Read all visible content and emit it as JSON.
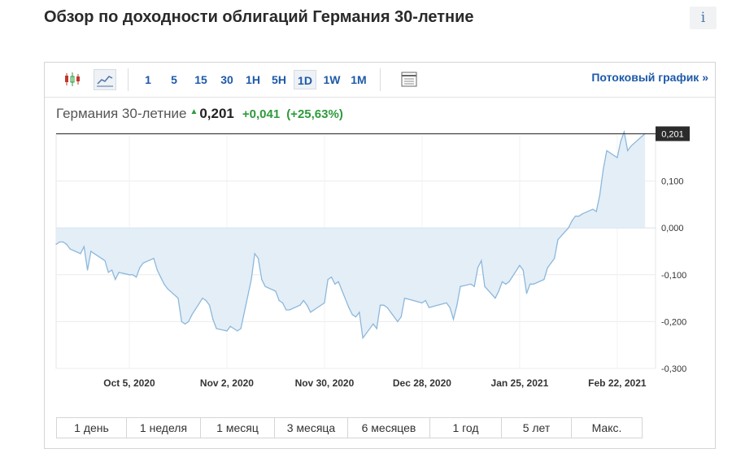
{
  "page": {
    "title": "Обзор по доходности облигаций Германия 30-летние",
    "info_label": "i"
  },
  "toolbar": {
    "intervals": [
      "1",
      "5",
      "15",
      "30",
      "1H",
      "5H",
      "1D",
      "1W",
      "1M"
    ],
    "active_interval": "1D",
    "stream_link": "Потоковый график »",
    "icons": [
      "candlestick-icon",
      "line-chart-icon",
      "table-icon"
    ]
  },
  "quote": {
    "name": "Германия 30-летние",
    "last": "0,201",
    "change": "+0,041",
    "change_pct": "(+25,63%)",
    "direction": "up",
    "up_color": "#2e9a3d"
  },
  "chart_data": {
    "type": "area",
    "title": "",
    "xlabel": "",
    "ylabel": "",
    "ylim": [
      -0.3,
      0.2
    ],
    "yticks": [
      "0,100",
      "0,000",
      "-0,100",
      "-0,200",
      "-0,300"
    ],
    "ytick_values": [
      0.1,
      0.0,
      -0.1,
      -0.2,
      -0.3
    ],
    "xticks": [
      {
        "date": "2020-10-05",
        "label": "Oct 5, 2020"
      },
      {
        "date": "2020-11-02",
        "label": "Nov 2, 2020"
      },
      {
        "date": "2020-11-30",
        "label": "Nov 30, 2020"
      },
      {
        "date": "2020-12-28",
        "label": "Dec 28, 2020"
      },
      {
        "date": "2021-01-25",
        "label": "Jan 25, 2021"
      },
      {
        "date": "2021-02-22",
        "label": "Feb 22, 2021"
      }
    ],
    "x_start": "2020-09-14",
    "x_end": "2021-03-05",
    "last_value": 0.201,
    "last_label": "0,201",
    "baseline": 0.0,
    "line_color": "#8cb8dc",
    "fill_color": "#e4eef7",
    "series": [
      {
        "values": [
          [
            "2020-09-14",
            -0.035
          ],
          [
            "2020-09-15",
            -0.03
          ],
          [
            "2020-09-16",
            -0.03
          ],
          [
            "2020-09-17",
            -0.035
          ],
          [
            "2020-09-18",
            -0.045
          ],
          [
            "2020-09-21",
            -0.055
          ],
          [
            "2020-09-22",
            -0.04
          ],
          [
            "2020-09-23",
            -0.09
          ],
          [
            "2020-09-24",
            -0.05
          ],
          [
            "2020-09-25",
            -0.055
          ],
          [
            "2020-09-28",
            -0.07
          ],
          [
            "2020-09-29",
            -0.095
          ],
          [
            "2020-09-30",
            -0.09
          ],
          [
            "2020-10-01",
            -0.11
          ],
          [
            "2020-10-02",
            -0.095
          ],
          [
            "2020-10-05",
            -0.1
          ],
          [
            "2020-10-06",
            -0.1
          ],
          [
            "2020-10-07",
            -0.105
          ],
          [
            "2020-10-08",
            -0.085
          ],
          [
            "2020-10-09",
            -0.075
          ],
          [
            "2020-10-12",
            -0.065
          ],
          [
            "2020-10-13",
            -0.09
          ],
          [
            "2020-10-14",
            -0.105
          ],
          [
            "2020-10-15",
            -0.12
          ],
          [
            "2020-10-16",
            -0.13
          ],
          [
            "2020-10-19",
            -0.15
          ],
          [
            "2020-10-20",
            -0.2
          ],
          [
            "2020-10-21",
            -0.205
          ],
          [
            "2020-10-22",
            -0.2
          ],
          [
            "2020-10-23",
            -0.185
          ],
          [
            "2020-10-26",
            -0.15
          ],
          [
            "2020-10-27",
            -0.155
          ],
          [
            "2020-10-28",
            -0.165
          ],
          [
            "2020-10-29",
            -0.195
          ],
          [
            "2020-10-30",
            -0.215
          ],
          [
            "2020-11-02",
            -0.22
          ],
          [
            "2020-11-03",
            -0.21
          ],
          [
            "2020-11-04",
            -0.215
          ],
          [
            "2020-11-05",
            -0.22
          ],
          [
            "2020-11-06",
            -0.215
          ],
          [
            "2020-11-09",
            -0.11
          ],
          [
            "2020-11-10",
            -0.055
          ],
          [
            "2020-11-11",
            -0.065
          ],
          [
            "2020-11-12",
            -0.11
          ],
          [
            "2020-11-13",
            -0.125
          ],
          [
            "2020-11-16",
            -0.135
          ],
          [
            "2020-11-17",
            -0.155
          ],
          [
            "2020-11-18",
            -0.16
          ],
          [
            "2020-11-19",
            -0.175
          ],
          [
            "2020-11-20",
            -0.175
          ],
          [
            "2020-11-23",
            -0.165
          ],
          [
            "2020-11-24",
            -0.155
          ],
          [
            "2020-11-25",
            -0.165
          ],
          [
            "2020-11-26",
            -0.18
          ],
          [
            "2020-11-27",
            -0.175
          ],
          [
            "2020-11-30",
            -0.16
          ],
          [
            "2020-12-01",
            -0.11
          ],
          [
            "2020-12-02",
            -0.105
          ],
          [
            "2020-12-03",
            -0.12
          ],
          [
            "2020-12-04",
            -0.115
          ],
          [
            "2020-12-07",
            -0.17
          ],
          [
            "2020-12-08",
            -0.185
          ],
          [
            "2020-12-09",
            -0.19
          ],
          [
            "2020-12-10",
            -0.18
          ],
          [
            "2020-12-11",
            -0.235
          ],
          [
            "2020-12-14",
            -0.205
          ],
          [
            "2020-12-15",
            -0.215
          ],
          [
            "2020-12-16",
            -0.165
          ],
          [
            "2020-12-17",
            -0.165
          ],
          [
            "2020-12-18",
            -0.17
          ],
          [
            "2020-12-21",
            -0.2
          ],
          [
            "2020-12-22",
            -0.19
          ],
          [
            "2020-12-23",
            -0.15
          ],
          [
            "2020-12-28",
            -0.16
          ],
          [
            "2020-12-29",
            -0.155
          ],
          [
            "2020-12-30",
            -0.17
          ],
          [
            "2021-01-04",
            -0.16
          ],
          [
            "2021-01-05",
            -0.17
          ],
          [
            "2021-01-06",
            -0.195
          ],
          [
            "2021-01-07",
            -0.165
          ],
          [
            "2021-01-08",
            -0.125
          ],
          [
            "2021-01-11",
            -0.12
          ],
          [
            "2021-01-12",
            -0.125
          ],
          [
            "2021-01-13",
            -0.085
          ],
          [
            "2021-01-14",
            -0.07
          ],
          [
            "2021-01-15",
            -0.125
          ],
          [
            "2021-01-18",
            -0.15
          ],
          [
            "2021-01-19",
            -0.135
          ],
          [
            "2021-01-20",
            -0.115
          ],
          [
            "2021-01-21",
            -0.12
          ],
          [
            "2021-01-22",
            -0.115
          ],
          [
            "2021-01-25",
            -0.08
          ],
          [
            "2021-01-26",
            -0.09
          ],
          [
            "2021-01-27",
            -0.14
          ],
          [
            "2021-01-28",
            -0.12
          ],
          [
            "2021-01-29",
            -0.12
          ],
          [
            "2021-02-01",
            -0.11
          ],
          [
            "2021-02-02",
            -0.085
          ],
          [
            "2021-02-03",
            -0.075
          ],
          [
            "2021-02-04",
            -0.065
          ],
          [
            "2021-02-05",
            -0.025
          ],
          [
            "2021-02-08",
            0.0
          ],
          [
            "2021-02-09",
            0.015
          ],
          [
            "2021-02-10",
            0.025
          ],
          [
            "2021-02-11",
            0.025
          ],
          [
            "2021-02-12",
            0.03
          ],
          [
            "2021-02-15",
            0.04
          ],
          [
            "2021-02-16",
            0.035
          ],
          [
            "2021-02-17",
            0.07
          ],
          [
            "2021-02-18",
            0.125
          ],
          [
            "2021-02-19",
            0.165
          ],
          [
            "2021-02-22",
            0.15
          ],
          [
            "2021-02-23",
            0.185
          ],
          [
            "2021-02-24",
            0.205
          ],
          [
            "2021-02-25",
            0.165
          ],
          [
            "2021-02-26",
            0.175
          ],
          [
            "2021-03-01",
            0.195
          ],
          [
            "2021-03-02",
            0.201
          ]
        ]
      }
    ]
  },
  "periods": [
    "1 день",
    "1 неделя",
    "1 месяц",
    "3 месяца",
    "6 месяцев",
    "1 год",
    "5 лет",
    "Макс."
  ]
}
